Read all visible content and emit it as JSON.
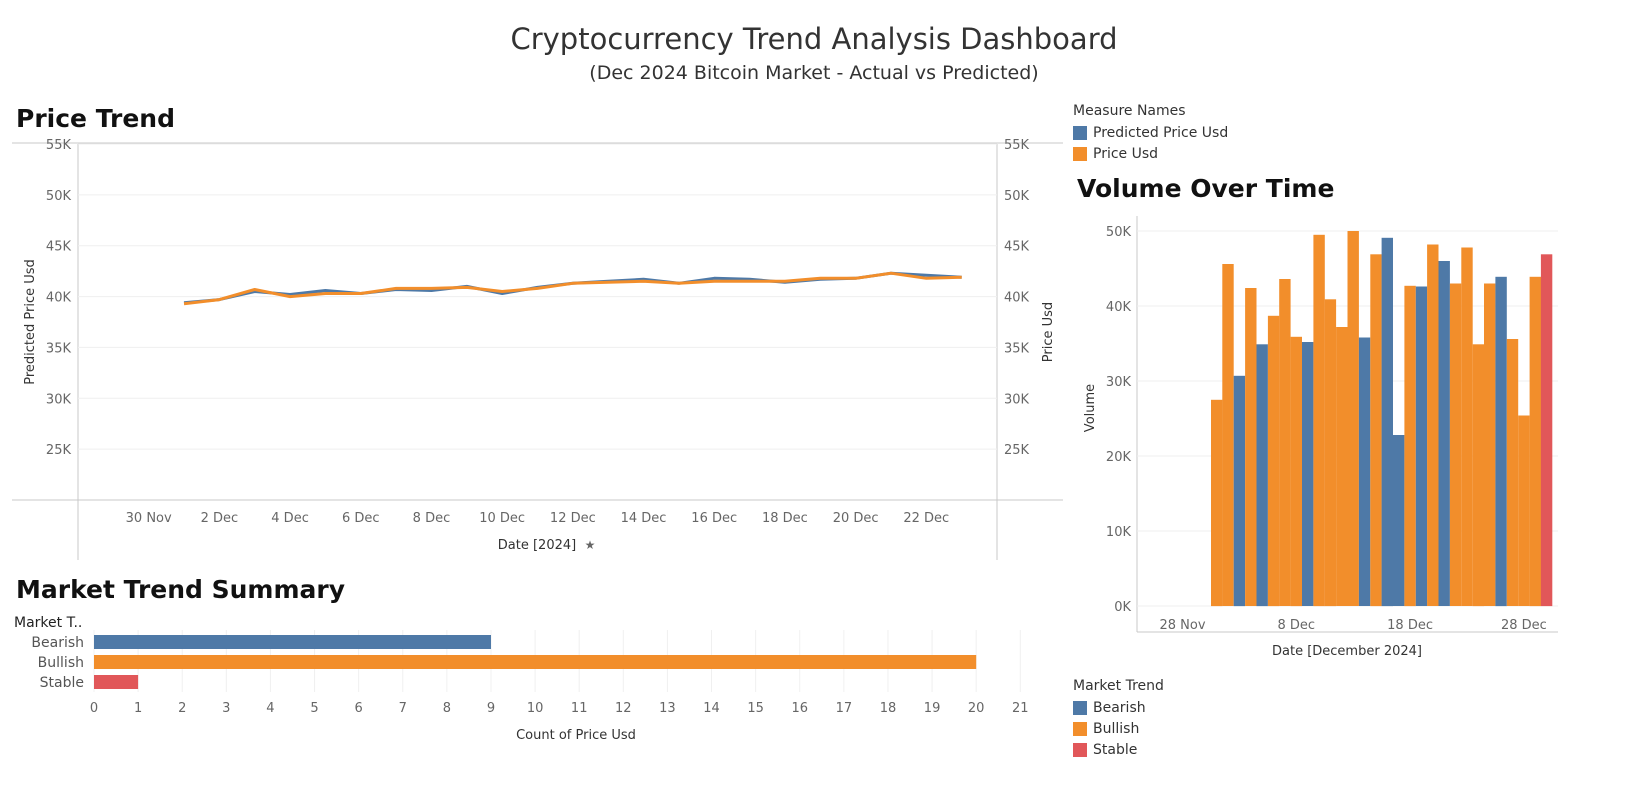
{
  "dashboard": {
    "title": "Cryptocurrency Trend Analysis Dashboard",
    "subtitle": "(Dec 2024 Bitcoin Market - Actual vs Predicted)"
  },
  "colors": {
    "blue": "#4e79a7",
    "orange": "#f28e2b",
    "red": "#e15759"
  },
  "legend_measures": {
    "title": "Measure Names",
    "items": [
      {
        "label": "Predicted Price Usd",
        "color": "#4e79a7"
      },
      {
        "label": "Price Usd",
        "color": "#f28e2b"
      }
    ]
  },
  "legend_trend": {
    "title": "Market Trend",
    "items": [
      {
        "label": "Bearish",
        "color": "#4e79a7"
      },
      {
        "label": "Bullish",
        "color": "#f28e2b"
      },
      {
        "label": "Stable",
        "color": "#e15759"
      }
    ]
  },
  "chart_data": [
    {
      "id": "price",
      "type": "line",
      "title": "Price Trend",
      "xlabel": "Date [2024]",
      "ylabel_left": "Predicted Price Usd",
      "ylabel_right": "Price Usd",
      "ylim": [
        20000,
        55000
      ],
      "yticks": [
        25000,
        30000,
        35000,
        40000,
        45000,
        50000,
        55000
      ],
      "ytick_labels": [
        "25K",
        "30K",
        "35K",
        "40K",
        "45K",
        "50K",
        "55K"
      ],
      "xlim": [
        "2024-11-28",
        "2024-12-24"
      ],
      "xticks": [
        "2024-11-30",
        "2024-12-02",
        "2024-12-04",
        "2024-12-06",
        "2024-12-08",
        "2024-12-10",
        "2024-12-12",
        "2024-12-14",
        "2024-12-16",
        "2024-12-18",
        "2024-12-20",
        "2024-12-22"
      ],
      "xtick_labels": [
        "30 Nov",
        "2 Dec",
        "4 Dec",
        "6 Dec",
        "8 Dec",
        "10 Dec",
        "12 Dec",
        "14 Dec",
        "16 Dec",
        "18 Dec",
        "20 Dec",
        "22 Dec"
      ],
      "x": [
        "2024-12-01",
        "2024-12-02",
        "2024-12-03",
        "2024-12-04",
        "2024-12-05",
        "2024-12-06",
        "2024-12-07",
        "2024-12-08",
        "2024-12-09",
        "2024-12-10",
        "2024-12-11",
        "2024-12-12",
        "2024-12-13",
        "2024-12-14",
        "2024-12-15",
        "2024-12-16",
        "2024-12-17",
        "2024-12-18",
        "2024-12-19",
        "2024-12-20",
        "2024-12-21",
        "2024-12-22",
        "2024-12-23"
      ],
      "series": [
        {
          "name": "Predicted Price Usd",
          "color": "#4e79a7",
          "values": [
            39400,
            39700,
            40500,
            40200,
            40600,
            40300,
            40700,
            40600,
            41000,
            40300,
            40900,
            41300,
            41500,
            41700,
            41300,
            41800,
            41700,
            41400,
            41700,
            41800,
            42300,
            42100,
            41900
          ]
        },
        {
          "name": "Price Usd",
          "color": "#f28e2b",
          "values": [
            39300,
            39700,
            40700,
            40000,
            40300,
            40300,
            40800,
            40800,
            40900,
            40500,
            40800,
            41300,
            41400,
            41500,
            41300,
            41500,
            41500,
            41500,
            41800,
            41800,
            42300,
            41800,
            41900
          ]
        }
      ]
    },
    {
      "id": "volume",
      "type": "bar",
      "title": "Volume Over Time",
      "xlabel": "Date [December 2024]",
      "ylabel": "Volume",
      "ylim": [
        0,
        52000
      ],
      "yticks": [
        0,
        10000,
        20000,
        30000,
        40000,
        50000
      ],
      "ytick_labels": [
        "0K",
        "10K",
        "20K",
        "30K",
        "40K",
        "50K"
      ],
      "xlim": [
        "2024-11-24",
        "2024-12-31"
      ],
      "xticks": [
        "2024-11-28",
        "2024-12-08",
        "2024-12-18",
        "2024-12-28"
      ],
      "xtick_labels": [
        "28 Nov",
        "8 Dec",
        "18 Dec",
        "28 Dec"
      ],
      "x": [
        "2024-12-01",
        "2024-12-02",
        "2024-12-03",
        "2024-12-04",
        "2024-12-05",
        "2024-12-06",
        "2024-12-07",
        "2024-12-08",
        "2024-12-09",
        "2024-12-10",
        "2024-12-11",
        "2024-12-12",
        "2024-12-13",
        "2024-12-14",
        "2024-12-15",
        "2024-12-16",
        "2024-12-17",
        "2024-12-18",
        "2024-12-19",
        "2024-12-20",
        "2024-12-21",
        "2024-12-22",
        "2024-12-23",
        "2024-12-24",
        "2024-12-25",
        "2024-12-26",
        "2024-12-27",
        "2024-12-28",
        "2024-12-29",
        "2024-12-30"
      ],
      "values": [
        27500,
        45600,
        30700,
        42400,
        34900,
        38700,
        43600,
        35900,
        35200,
        49500,
        40900,
        37200,
        50000,
        35800,
        46900,
        49100,
        22800,
        42700,
        42600,
        48200,
        46000,
        43000,
        47800,
        34900,
        43000,
        43900,
        35600,
        25400,
        43900,
        46900
      ],
      "trend": [
        "Bullish",
        "Bullish",
        "Bearish",
        "Bullish",
        "Bearish",
        "Bullish",
        "Bullish",
        "Bullish",
        "Bearish",
        "Bullish",
        "Bullish",
        "Bullish",
        "Bullish",
        "Bearish",
        "Bullish",
        "Bearish",
        "Bearish",
        "Bullish",
        "Bearish",
        "Bullish",
        "Bearish",
        "Bullish",
        "Bullish",
        "Bullish",
        "Bullish",
        "Bearish",
        "Bullish",
        "Bullish",
        "Bullish",
        "Stable"
      ]
    },
    {
      "id": "summary",
      "type": "bar",
      "orientation": "horizontal",
      "title": "Market Trend Summary",
      "row_header": "Market T..",
      "xlabel": "Count of Price Usd",
      "xlim": [
        0,
        21
      ],
      "xticks": [
        0,
        1,
        2,
        3,
        4,
        5,
        6,
        7,
        8,
        9,
        10,
        11,
        12,
        13,
        14,
        15,
        16,
        17,
        18,
        19,
        20,
        21
      ],
      "categories": [
        "Bearish",
        "Bullish",
        "Stable"
      ],
      "values": [
        9,
        20,
        1
      ],
      "colors": [
        "#4e79a7",
        "#f28e2b",
        "#e15759"
      ]
    }
  ]
}
